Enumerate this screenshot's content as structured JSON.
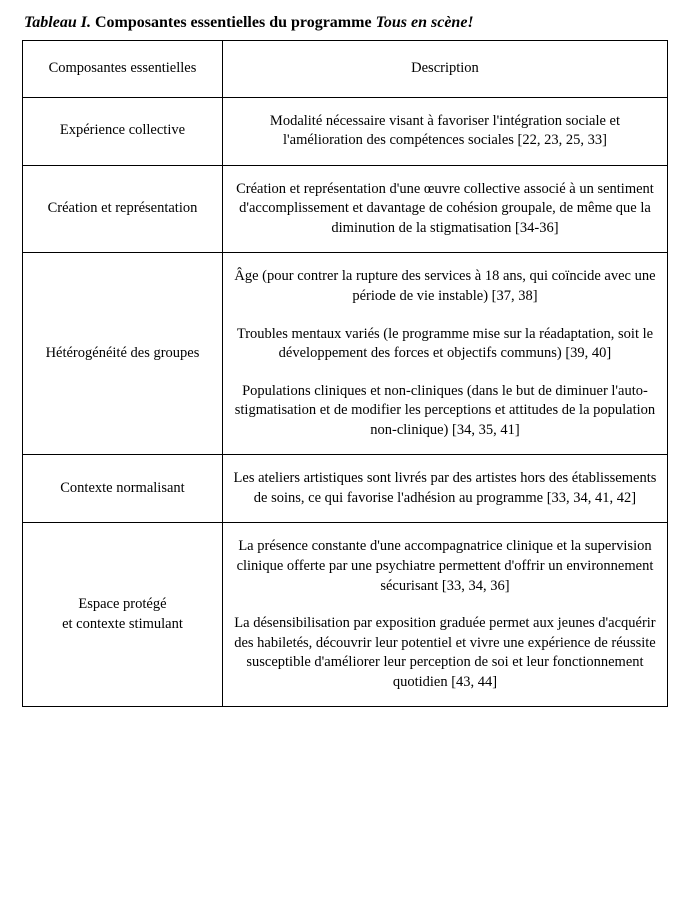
{
  "caption": {
    "label": "Tableau I.",
    "title": " Composantes essentielles du programme ",
    "program": "Tous en scène!"
  },
  "headers": {
    "col1": "Composantes essentielles",
    "col2": "Description"
  },
  "rows": [
    {
      "name": "Expérience collective",
      "desc": [
        "Modalité nécessaire visant à favoriser l'intégration sociale et l'amélioration des compétences sociales [22, 23, 25, 33]"
      ]
    },
    {
      "name": "Création et représentation",
      "desc": [
        "Création et représentation d'une œuvre collective associé à un sentiment d'accomplissement et davantage de cohésion groupale, de même que la diminution de la stigmatisation [34-36]"
      ]
    },
    {
      "name": "Hétérogénéité des groupes",
      "desc": [
        "Âge (pour contrer la rupture des services à 18 ans, qui coïncide avec une période de vie instable) [37, 38]",
        "Troubles mentaux variés (le programme mise sur la réadaptation, soit le développement des forces et objectifs communs) [39, 40]",
        "Populations cliniques et non-cliniques (dans le but de diminuer l'auto-stigmatisation et de modifier les perceptions et attitudes de la population non-clinique) [34, 35, 41]"
      ]
    },
    {
      "name": "Contexte normalisant",
      "desc": [
        "Les ateliers artistiques sont livrés par des artistes hors des établissements de soins, ce qui favorise l'adhésion au programme [33, 34, 41, 42]"
      ]
    },
    {
      "name": "Espace protégé\net contexte stimulant",
      "desc": [
        "La présence constante d'une accompagnatrice clinique et la supervision clinique offerte par une psychiatre permettent d'offrir un environnement sécurisant [33, 34, 36]",
        "La désensibilisation par exposition graduée permet aux jeunes d'acquérir des habiletés, découvrir leur potentiel et vivre une expérience de réussite susceptible d'améliorer leur perception de soi et leur fonctionnement quotidien [43, 44]"
      ]
    }
  ]
}
